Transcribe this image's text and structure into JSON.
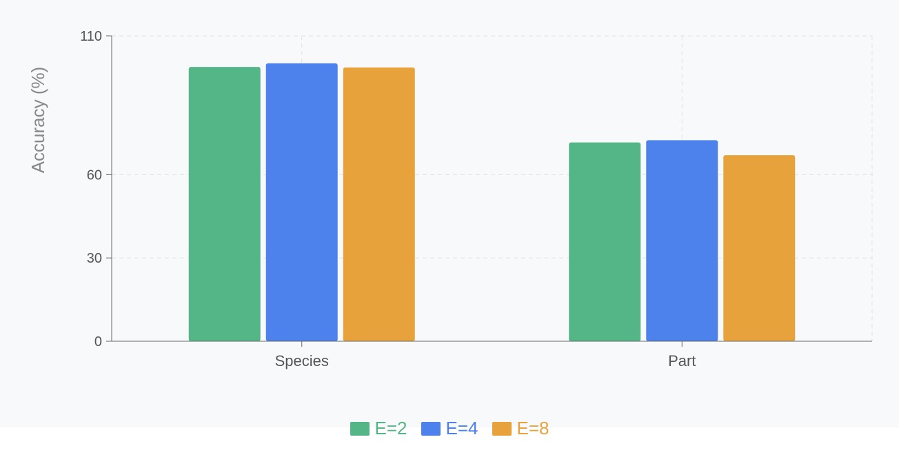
{
  "chart_data": {
    "type": "bar",
    "categories": [
      "Species",
      "Part"
    ],
    "series": [
      {
        "name": "E=2",
        "color": "#54b686",
        "values": [
          98.8,
          71.6
        ]
      },
      {
        "name": "E=4",
        "color": "#4d82ec",
        "values": [
          100.1,
          72.4
        ]
      },
      {
        "name": "E=8",
        "color": "#e8a23b",
        "values": [
          98.6,
          67.0
        ]
      }
    ],
    "ylabel": "Accuracy (%)",
    "xlabel": "",
    "ylim": [
      0,
      110
    ],
    "yticks": [
      0,
      30,
      60,
      110
    ],
    "grid": true,
    "legend": "bottom"
  }
}
